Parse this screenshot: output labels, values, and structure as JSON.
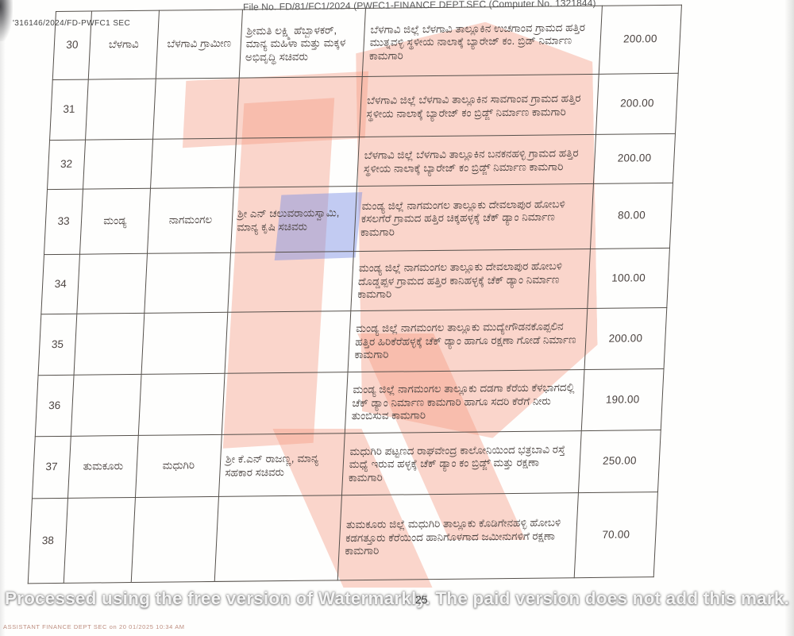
{
  "page": {
    "ref_number": "'316146/2024/FD-PWFC1 SEC",
    "file_header": "File No. FD/81/FC1/2024 (PWFC1-FINANCE DEPT.SEC (Computer No. 1321844)",
    "page_number": "25",
    "watermark_text": "Processed using the free version of Watermarkly. The paid version does not add this mark.",
    "footer_fine_print": "ASSISTANT  FINANCE DEPT SEC  on 20 01/2025 10:34 AM"
  },
  "watermark_logo": {
    "pink_color": "#f49880",
    "blue_color": "#7a8ee4",
    "shapes": [
      "top-bar",
      "trunk",
      "description-block",
      "leg-1",
      "leg-2",
      "blue-accent"
    ]
  },
  "table": {
    "column_keys": [
      "sl_no",
      "district",
      "taluk",
      "minister",
      "description",
      "amount"
    ],
    "rows": [
      {
        "sl_no": "30",
        "district": "ಬೆಳಗಾವಿ",
        "taluk": "ಬೆಳಗಾವಿ ಗ್ರಾಮೀಣ",
        "minister": "ಶ್ರೀಮತಿ ಲಕ್ಷ್ಮಿ ಹೆಬ್ಬಾಳಕರ್, ಮಾನ್ಯ ಮಹಿಳಾ ಮತ್ತು ಮಕ್ಕಳ ಅಭಿವೃದ್ಧಿ ಸಚಿವರು",
        "description": "ಬೆಳಗಾವಿ ಜಿಲ್ಲೆ ಬೆಳಗಾವಿ ತಾಲ್ಲೂಕಿನ ಉಚಗಾಂವ ಗ್ರಾಮದ ಹತ್ತಿರ ಮುತ್ನವಳ್ಳಿ ಸ್ಥಳೀಯ ನಾಲಾಕ್ಕೆ ಬ್ಯಾರೇಜ್ ಕಂ. ಬ್ರಿಡ್ ನಿರ್ಮಾಣ ಕಾಮಗಾರಿ",
        "amount": "200.00"
      },
      {
        "sl_no": "31",
        "district": "",
        "taluk": "",
        "minister": "",
        "description": "ಬೆಳಗಾವಿ ಜಿಲ್ಲೆ ಬೆಳಗಾವಿ ತಾಲ್ಲೂಕಿನ ಸಾವಗಾಂವ ಗ್ರಾಮದ ಹತ್ತಿರ ಸ್ಥಳೀಯ ನಾಲಾಕ್ಕೆ ಬ್ಯಾರೇಜ್ ಕಂ ಬ್ರಿಡ್ಜ್ ನಿರ್ಮಾಣ ಕಾಮಗಾರಿ",
        "amount": "200.00"
      },
      {
        "sl_no": "32",
        "district": "",
        "taluk": "",
        "minister": "",
        "description": "ಬೆಳಗಾವಿ ಜಿಲ್ಲೆ ಬೆಳಗಾವಿ ತಾಲ್ಲೂಕಿನ ಬನಕನಹಳ್ಳಿ ಗ್ರಾಮದ ಹತ್ತಿರ ಸ್ಥಳೀಯ ನಾಲಾಕ್ಕೆ ಬ್ಯಾರೇಜ್ ಕಂ ಬ್ರಿಡ್ಜ್ ನಿರ್ಮಾಣ ಕಾಮಗಾರಿ",
        "amount": "200.00"
      },
      {
        "sl_no": "33",
        "district": "ಮಂಡ್ಯ",
        "taluk": "ನಾಗಮಂಗಲ",
        "minister": "ಶ್ರೀ ಎನ್ ಚಲುವರಾಯಸ್ವಾಮಿ, ಮಾನ್ಯ ಕೃಷಿ ಸಚಿವರು",
        "description": "ಮಂಡ್ಯ ಜಿಲ್ಲೆ ನಾಗಮಂಗಲ ತಾಲ್ಲೂಕು ದೇವಲಾಪುರ ಹೋಬಳಿ ಕಸಲಗೆರೆ ಗ್ರಾಮದ ಹತ್ತಿರ ಚಿಕ್ಕಹಳ್ಳಕ್ಕೆ ಚೆಕ್ ಡ್ಯಾಂ ನಿರ್ಮಾಣ ಕಾಮಗಾರಿ",
        "amount": "80.00"
      },
      {
        "sl_no": "34",
        "district": "",
        "taluk": "",
        "minister": "",
        "description": "ಮಂಡ್ಯ ಜಿಲ್ಲೆ ನಾಗಮಂಗಲ ತಾಲ್ಲೂಕು ದೇವಲಾಪುರ ಹೋಬಳಿ ದೊಡ್ಡಪ್ಪಳ ಗ್ರಾಮದ ಹತ್ತಿರ ಕಾನಿಹಳ್ಳಕ್ಕೆ ಚೆಕ್ ಡ್ಯಾಂ ನಿರ್ಮಾಣ ಕಾಮಗಾರಿ",
        "amount": "100.00"
      },
      {
        "sl_no": "35",
        "district": "",
        "taluk": "",
        "minister": "",
        "description": "ಮಂಡ್ಯ ಜಿಲ್ಲೆ ನಾಗಮಂಗಲ ತಾಲ್ಲೂಕು ಮುದ್ಯೇಗೌಡನಕೊಪ್ಪಲಿನ ಹತ್ತಿರ ಹಿರಿಕೆರೆಹಳ್ಳಕ್ಕೆ ಚೆಕ್ ಡ್ಯಾಂ ಹಾಗೂ ರಕ್ಷಣಾ ಗೋಡೆ ನಿರ್ಮಾಣ ಕಾಮಗಾರಿ",
        "amount": "200.00"
      },
      {
        "sl_no": "36",
        "district": "",
        "taluk": "",
        "minister": "",
        "description": "ಮಂಡ್ಯ ಜಿಲ್ಲೆ ನಾಗಮಂಗಲ ತಾಲ್ಲೂಕು ದಡಗಾ ಕೆರೆಯ ಕೆಳಭಾಗದಲ್ಲಿ ಚೆಕ್ ಡ್ಯಾಂ ನಿರ್ಮಾಣ ಕಾಮಗಾರಿ ಹಾಗೂ ಸದರಿ ಕೆರೆಗೆ ನೀರು ತುಂಬಿಸುವ ಕಾಮಗಾರಿ",
        "amount": "190.00"
      },
      {
        "sl_no": "37",
        "district": "ತುಮಕೂರು",
        "taluk": "ಮಧುಗಿರಿ",
        "minister": "ಶ್ರೀ ಕೆ.ಎನ್ ರಾಜಣ್ಣ, ಮಾನ್ಯ ಸಹಕಾರ ಸಚಿವರು",
        "description": "ಮಧುಗಿರಿ ಪಟ್ಟಣದ ರಾಘವೇಂದ್ರ ಕಾಲೋನಿಯಿಂದ ಭತ್ರಬಾವಿ ರಸ್ತೆ ಮಧ್ಯೆ ಇರುವ ಹಳ್ಳಕ್ಕೆ ಚೆಕ್ ಡ್ಯಾಂ ಕಂ ಬ್ರಿಡ್ಜ್ ಮತ್ತು ರಕ್ಷಣಾ ಕಾಮಗಾರಿ",
        "amount": "250.00"
      },
      {
        "sl_no": "38",
        "district": "",
        "taluk": "",
        "minister": "",
        "description": "ತುಮಕೂರು ಜಿಲ್ಲೆ ಮಧುಗಿರಿ ತಾಲ್ಲೂಕು ಕೊಡಿಗೇನಹಳ್ಳಿ ಹೋಬಳಿ ಕಡಗತ್ತೂರು ಕೆರೆಯಿಂದ ಹಾನಿಗೊಳಗಾದ ಜಮೀನುಗಳಿಗೆ ರಕ್ಷಣಾ ಕಾಮಗಾರಿ",
        "amount": "70.00"
      }
    ]
  }
}
